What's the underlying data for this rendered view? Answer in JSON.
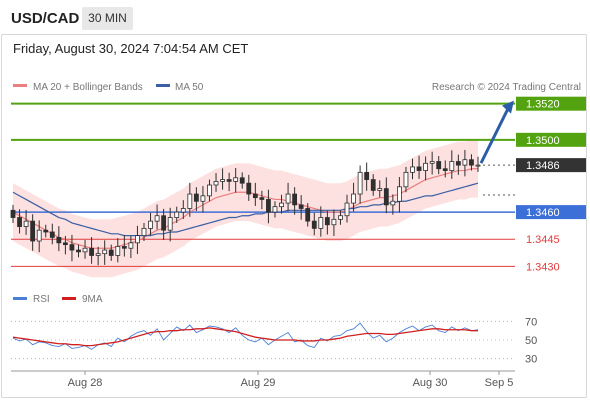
{
  "header": {
    "pair": "USD/CAD",
    "timeframe": "30 MIN"
  },
  "datetime": "Friday, August 30, 2024 7:04:54 AM CET",
  "research_credit": "Research © 2024 Trading Central",
  "legend": {
    "ma20": "MA 20 + Bollinger Bands",
    "ma50": "MA 50",
    "rsi": "RSI",
    "ma9": "9MA"
  },
  "colors": {
    "resistance": "#52a30f",
    "support": "#3d6fd8",
    "support_minor": "#e03c3c",
    "current": "#333333",
    "arrow": "#2c5ea8",
    "ma20": "#e97f7f",
    "ma50": "#3a5fa3",
    "bands": "#fcd6d6",
    "candle": "#2f2f2f",
    "rsi": "#4a7fd6",
    "ma9": "#d11f1f"
  },
  "chart_data": [
    {
      "type": "candlestick",
      "title": "USD/CAD",
      "price_range": [
        1.3418,
        1.3532
      ],
      "levels": [
        {
          "value": "1.3520",
          "kind": "resistance"
        },
        {
          "value": "1.3500",
          "kind": "resistance"
        },
        {
          "value": "1.3486",
          "kind": "current"
        },
        {
          "value": "1.3460",
          "kind": "support"
        },
        {
          "value": "1.3445",
          "kind": "support_minor"
        },
        {
          "value": "1.3430",
          "kind": "support_minor"
        }
      ],
      "x_ticks": [
        "Aug 28",
        "Aug 29",
        "Aug 30",
        "Sep 5"
      ],
      "close": [
        1.3457,
        1.3452,
        1.3455,
        1.3444,
        1.345,
        1.3449,
        1.3446,
        1.3443,
        1.3442,
        1.3439,
        1.3438,
        1.344,
        1.3436,
        1.3437,
        1.3439,
        1.3436,
        1.3441,
        1.344,
        1.3443,
        1.3447,
        1.3451,
        1.3455,
        1.3458,
        1.345,
        1.3457,
        1.346,
        1.3462,
        1.347,
        1.3466,
        1.3469,
        1.3475,
        1.3477,
        1.3478,
        1.3477,
        1.3479,
        1.3476,
        1.347,
        1.3468,
        1.3467,
        1.346,
        1.3463,
        1.3465,
        1.347,
        1.3464,
        1.3462,
        1.3455,
        1.3451,
        1.3457,
        1.3453,
        1.3456,
        1.3458,
        1.3465,
        1.347,
        1.3482,
        1.3478,
        1.3472,
        1.3473,
        1.3464,
        1.3466,
        1.3474,
        1.3482,
        1.3485,
        1.3483,
        1.3487,
        1.3488,
        1.3484,
        1.3483,
        1.3488,
        1.3486,
        1.3489,
        1.3486,
        1.3486
      ],
      "ma20": [
        1.346,
        1.3458,
        1.3456,
        1.3454,
        1.3452,
        1.345,
        1.3448,
        1.3446,
        1.3445,
        1.3443,
        1.3442,
        1.3441,
        1.344,
        1.344,
        1.344,
        1.344,
        1.3441,
        1.3442,
        1.3443,
        1.3444,
        1.3446,
        1.3448,
        1.345,
        1.3451,
        1.3453,
        1.3455,
        1.3457,
        1.346,
        1.3462,
        1.3464,
        1.3466,
        1.3468,
        1.3469,
        1.347,
        1.3471,
        1.3471,
        1.3471,
        1.347,
        1.3469,
        1.3468,
        1.3467,
        1.3467,
        1.3466,
        1.3465,
        1.3464,
        1.3463,
        1.3462,
        1.3461,
        1.346,
        1.346,
        1.346,
        1.3461,
        1.3463,
        1.3465,
        1.3466,
        1.3467,
        1.3468,
        1.3468,
        1.3469,
        1.347,
        1.3472,
        1.3474,
        1.3476,
        1.3478,
        1.3479,
        1.348,
        1.3481,
        1.3482,
        1.3483,
        1.3483,
        1.3484,
        1.3484
      ],
      "ma50": [
        1.3471,
        1.3469,
        1.3467,
        1.3465,
        1.3463,
        1.3461,
        1.3459,
        1.3457,
        1.3456,
        1.3454,
        1.3453,
        1.3452,
        1.3451,
        1.345,
        1.3449,
        1.3448,
        1.3448,
        1.3447,
        1.3447,
        1.3447,
        1.3447,
        1.3447,
        1.3448,
        1.3448,
        1.3449,
        1.3449,
        1.345,
        1.3451,
        1.3452,
        1.3453,
        1.3454,
        1.3455,
        1.3456,
        1.3457,
        1.3457,
        1.3458,
        1.3458,
        1.3459,
        1.3459,
        1.346,
        1.346,
        1.346,
        1.3461,
        1.3461,
        1.3461,
        1.3461,
        1.3461,
        1.3461,
        1.3461,
        1.3461,
        1.3461,
        1.3462,
        1.3462,
        1.3463,
        1.3463,
        1.3464,
        1.3464,
        1.3465,
        1.3465,
        1.3466,
        1.3466,
        1.3467,
        1.3468,
        1.3469,
        1.3469,
        1.347,
        1.3471,
        1.3472,
        1.3473,
        1.3474,
        1.3475,
        1.3476
      ],
      "band_width": 0.0016,
      "projection": {
        "to": 1.352
      }
    },
    {
      "type": "line",
      "ylim": [
        20,
        80
      ],
      "y_ticks": [
        "70",
        "50",
        "30"
      ],
      "series": [
        {
          "name": "RSI",
          "values": [
            52,
            49,
            51,
            45,
            48,
            47,
            44,
            43,
            46,
            41,
            42,
            44,
            40,
            45,
            47,
            43,
            52,
            48,
            54,
            58,
            60,
            55,
            62,
            50,
            57,
            64,
            60,
            66,
            58,
            61,
            65,
            64,
            62,
            58,
            63,
            55,
            50,
            48,
            52,
            45,
            50,
            54,
            58,
            48,
            50,
            44,
            42,
            52,
            49,
            54,
            55,
            60,
            62,
            68,
            59,
            52,
            55,
            48,
            52,
            58,
            62,
            65,
            60,
            64,
            66,
            60,
            58,
            64,
            60,
            63,
            60,
            61
          ]
        },
        {
          "name": "9MA",
          "values": [
            53,
            52,
            51,
            50,
            49,
            48,
            47,
            46,
            46,
            45,
            45,
            44,
            44,
            45,
            46,
            47,
            48,
            50,
            52,
            54,
            56,
            58,
            59,
            59,
            60,
            60,
            61,
            61,
            62,
            62,
            63,
            62,
            61,
            60,
            59,
            57,
            55,
            53,
            52,
            51,
            50,
            50,
            50,
            50,
            49,
            49,
            49,
            50,
            50,
            51,
            52,
            54,
            55,
            56,
            57,
            57,
            57,
            56,
            56,
            57,
            58,
            59,
            60,
            61,
            62,
            62,
            61,
            61,
            61,
            61,
            60,
            60
          ]
        }
      ]
    }
  ]
}
